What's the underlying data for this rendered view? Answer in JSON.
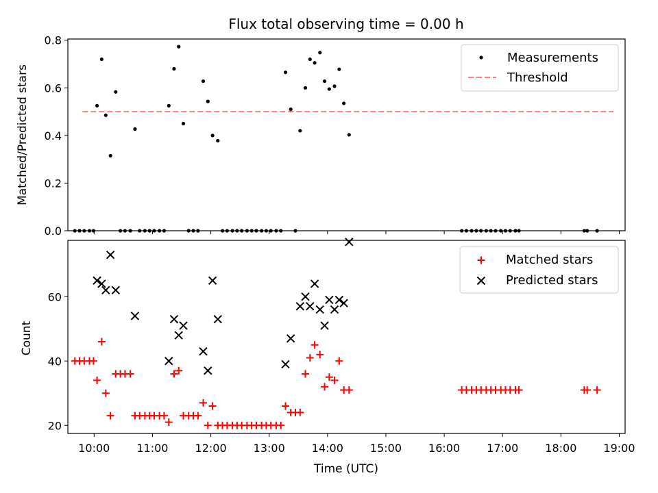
{
  "chart_data": [
    {
      "type": "scatter",
      "title": "Flux total observing time = 0.00 h",
      "xlabel": "",
      "ylabel": "Matched/Predicted stars",
      "xlim": [
        9.55,
        19.1
      ],
      "ylim": [
        0,
        0.805
      ],
      "yticks": [
        0.0,
        0.2,
        0.4,
        0.6,
        0.8
      ],
      "ytick_labels": [
        "0.0",
        "0.2",
        "0.4",
        "0.6",
        "0.8"
      ],
      "legend": "top-right",
      "legend_labels": {
        "points": "Measurements",
        "threshold": "Threshold"
      },
      "threshold": {
        "value": 0.5,
        "x_range": [
          9.8,
          18.9
        ],
        "color": "#ff7f7f"
      },
      "points": [
        [
          9.67,
          0
        ],
        [
          9.75,
          0
        ],
        [
          9.83,
          0
        ],
        [
          9.92,
          0
        ],
        [
          9.99,
          0
        ],
        [
          10.05,
          0.525
        ],
        [
          10.13,
          0.72
        ],
        [
          10.2,
          0.485
        ],
        [
          10.28,
          0.315
        ],
        [
          10.37,
          0.583
        ],
        [
          10.45,
          0
        ],
        [
          10.53,
          0
        ],
        [
          10.62,
          0
        ],
        [
          10.7,
          0.427
        ],
        [
          10.78,
          0
        ],
        [
          10.87,
          0
        ],
        [
          10.95,
          0
        ],
        [
          11.03,
          0
        ],
        [
          11.12,
          0
        ],
        [
          11.2,
          0
        ],
        [
          11.28,
          0.525
        ],
        [
          11.37,
          0.68
        ],
        [
          11.45,
          0.773
        ],
        [
          11.53,
          0.45
        ],
        [
          11.62,
          0
        ],
        [
          11.7,
          0
        ],
        [
          11.78,
          0
        ],
        [
          11.87,
          0.628
        ],
        [
          11.95,
          0.543
        ],
        [
          12.03,
          0.4
        ],
        [
          12.12,
          0.378
        ],
        [
          12.2,
          0
        ],
        [
          12.28,
          0
        ],
        [
          12.37,
          0
        ],
        [
          12.45,
          0
        ],
        [
          12.53,
          0
        ],
        [
          12.62,
          0
        ],
        [
          12.7,
          0
        ],
        [
          12.78,
          0
        ],
        [
          12.87,
          0
        ],
        [
          12.95,
          0
        ],
        [
          13.03,
          0
        ],
        [
          13.12,
          0
        ],
        [
          13.2,
          0
        ],
        [
          13.28,
          0.665
        ],
        [
          13.37,
          0.51
        ],
        [
          13.45,
          0
        ],
        [
          13.53,
          0.42
        ],
        [
          13.62,
          0.6
        ],
        [
          13.7,
          0.72
        ],
        [
          13.78,
          0.705
        ],
        [
          13.87,
          0.748
        ],
        [
          13.95,
          0.628
        ],
        [
          14.03,
          0.595
        ],
        [
          14.12,
          0.607
        ],
        [
          14.2,
          0.678
        ],
        [
          14.28,
          0.535
        ],
        [
          14.37,
          0.403
        ],
        [
          16.3,
          0
        ],
        [
          16.38,
          0
        ],
        [
          16.47,
          0
        ],
        [
          16.55,
          0
        ],
        [
          16.63,
          0
        ],
        [
          16.72,
          0
        ],
        [
          16.8,
          0
        ],
        [
          16.88,
          0
        ],
        [
          16.97,
          0
        ],
        [
          17.05,
          0
        ],
        [
          17.13,
          0
        ],
        [
          17.22,
          0
        ],
        [
          17.28,
          0
        ],
        [
          18.4,
          0
        ],
        [
          18.45,
          0
        ],
        [
          18.62,
          0
        ]
      ]
    },
    {
      "type": "scatter",
      "title": "",
      "xlabel": "Time (UTC)",
      "ylabel": "Count",
      "xlim": [
        9.55,
        19.1
      ],
      "ylim": [
        17.5,
        77.5
      ],
      "yticks": [
        20,
        40,
        60
      ],
      "ytick_labels": [
        "20",
        "40",
        "60"
      ],
      "xticks": [
        10,
        11,
        12,
        13,
        14,
        15,
        16,
        17,
        18,
        19
      ],
      "xtick_labels": [
        "10:00",
        "11:00",
        "12:00",
        "13:00",
        "14:00",
        "15:00",
        "16:00",
        "17:00",
        "18:00",
        "19:00"
      ],
      "legend": "top-right",
      "series": [
        {
          "name": "Matched stars",
          "marker": "plus",
          "color": "#ff0000",
          "points": [
            [
              9.67,
              40
            ],
            [
              9.75,
              40
            ],
            [
              9.83,
              40
            ],
            [
              9.92,
              40
            ],
            [
              9.99,
              40
            ],
            [
              10.05,
              34
            ],
            [
              10.13,
              46
            ],
            [
              10.2,
              30
            ],
            [
              10.28,
              23
            ],
            [
              10.37,
              36
            ],
            [
              10.45,
              36
            ],
            [
              10.53,
              36
            ],
            [
              10.62,
              36
            ],
            [
              10.7,
              23
            ],
            [
              10.78,
              23
            ],
            [
              10.87,
              23
            ],
            [
              10.95,
              23
            ],
            [
              11.03,
              23
            ],
            [
              11.12,
              23
            ],
            [
              11.2,
              23
            ],
            [
              11.28,
              21
            ],
            [
              11.37,
              36
            ],
            [
              11.45,
              37
            ],
            [
              11.53,
              23
            ],
            [
              11.62,
              23
            ],
            [
              11.7,
              23
            ],
            [
              11.78,
              23
            ],
            [
              11.87,
              27
            ],
            [
              11.95,
              20
            ],
            [
              12.03,
              26
            ],
            [
              12.12,
              20
            ],
            [
              12.2,
              20
            ],
            [
              12.28,
              20
            ],
            [
              12.37,
              20
            ],
            [
              12.45,
              20
            ],
            [
              12.53,
              20
            ],
            [
              12.62,
              20
            ],
            [
              12.7,
              20
            ],
            [
              12.78,
              20
            ],
            [
              12.87,
              20
            ],
            [
              12.95,
              20
            ],
            [
              13.03,
              20
            ],
            [
              13.12,
              20
            ],
            [
              13.2,
              20
            ],
            [
              13.28,
              26
            ],
            [
              13.37,
              24
            ],
            [
              13.45,
              24
            ],
            [
              13.53,
              24
            ],
            [
              13.62,
              36
            ],
            [
              13.7,
              41
            ],
            [
              13.78,
              45
            ],
            [
              13.87,
              42
            ],
            [
              13.95,
              32
            ],
            [
              14.03,
              35
            ],
            [
              14.12,
              34
            ],
            [
              14.2,
              40
            ],
            [
              14.28,
              31
            ],
            [
              14.37,
              31
            ],
            [
              16.3,
              31
            ],
            [
              16.38,
              31
            ],
            [
              16.47,
              31
            ],
            [
              16.55,
              31
            ],
            [
              16.63,
              31
            ],
            [
              16.72,
              31
            ],
            [
              16.8,
              31
            ],
            [
              16.88,
              31
            ],
            [
              16.97,
              31
            ],
            [
              17.05,
              31
            ],
            [
              17.13,
              31
            ],
            [
              17.22,
              31
            ],
            [
              17.28,
              31
            ],
            [
              18.4,
              31
            ],
            [
              18.45,
              31
            ],
            [
              18.62,
              31
            ]
          ]
        },
        {
          "name": "Predicted stars",
          "marker": "x",
          "color": "#000000",
          "points": [
            [
              10.05,
              65
            ],
            [
              10.13,
              64
            ],
            [
              10.2,
              62
            ],
            [
              10.28,
              73
            ],
            [
              10.37,
              62
            ],
            [
              10.7,
              54
            ],
            [
              11.28,
              40
            ],
            [
              11.37,
              53
            ],
            [
              11.45,
              48
            ],
            [
              11.53,
              51
            ],
            [
              11.87,
              43
            ],
            [
              11.95,
              37
            ],
            [
              12.03,
              65
            ],
            [
              12.12,
              53
            ],
            [
              13.28,
              39
            ],
            [
              13.37,
              47
            ],
            [
              13.53,
              57
            ],
            [
              13.62,
              60
            ],
            [
              13.7,
              57
            ],
            [
              13.78,
              64
            ],
            [
              13.87,
              56
            ],
            [
              13.95,
              51
            ],
            [
              14.03,
              59
            ],
            [
              14.12,
              56
            ],
            [
              14.2,
              59
            ],
            [
              14.28,
              58
            ],
            [
              14.37,
              77
            ]
          ]
        }
      ]
    }
  ]
}
